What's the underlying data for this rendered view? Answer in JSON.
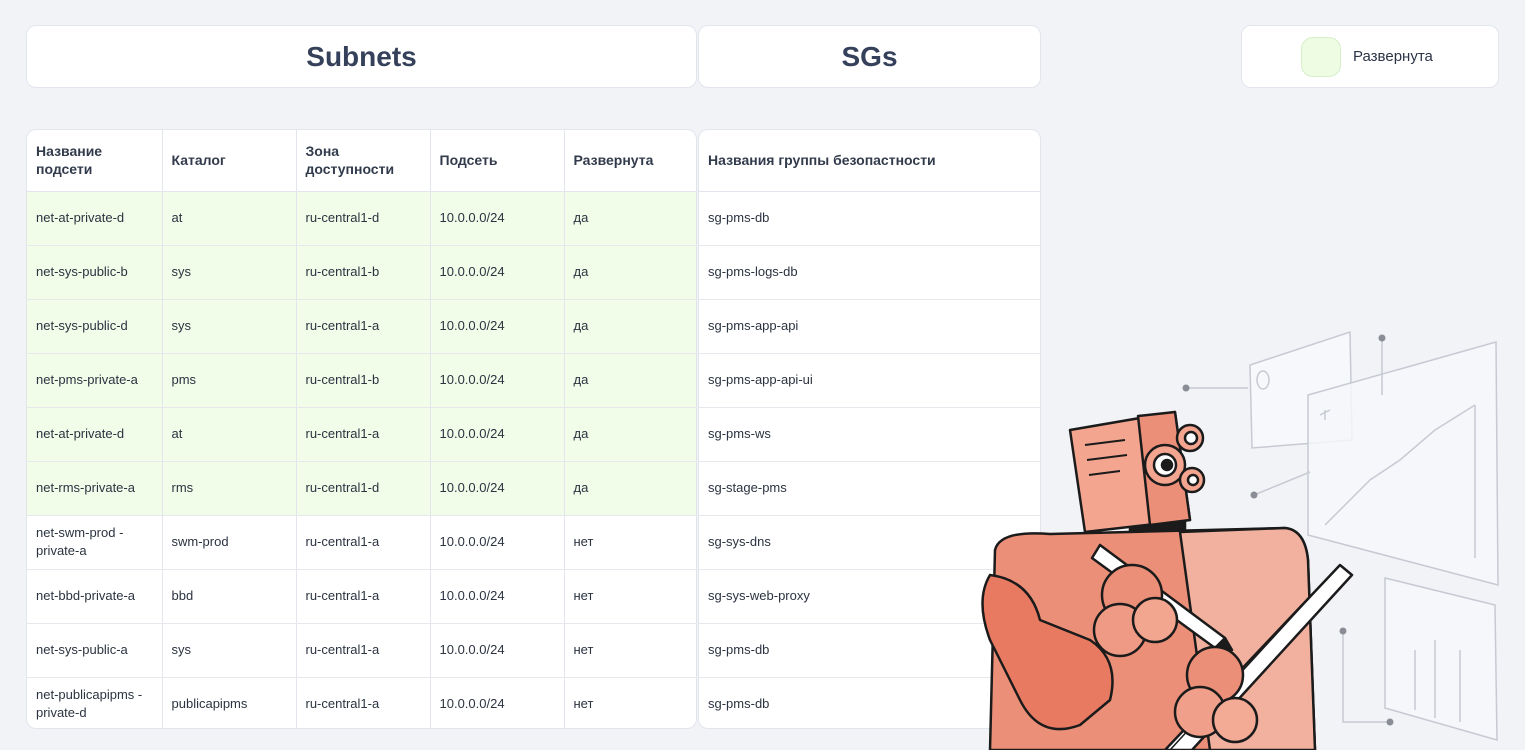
{
  "header": {
    "subnets_title": "Subnets",
    "sgs_title": "SGs"
  },
  "legend": {
    "label": "Развернута",
    "color": "#eefce4"
  },
  "subnets": {
    "columns": [
      "Названиe подсети",
      "Каталог",
      "Зона доступности",
      "Подсеть",
      "Развернута"
    ],
    "rows": [
      [
        "net-at-private-d",
        "at",
        "ru-central1-d",
        "10.0.0.0/24",
        "да"
      ],
      [
        "net-sys-public-b",
        "sys",
        "ru-central1-b",
        "10.0.0.0/24",
        "да"
      ],
      [
        "net-sys-public-d",
        "sys",
        "ru-central1-a",
        "10.0.0.0/24",
        "да"
      ],
      [
        "net-pms-private-a",
        "pms",
        "ru-central1-b",
        "10.0.0.0/24",
        "да"
      ],
      [
        "net-at-private-d",
        "at",
        "ru-central1-a",
        "10.0.0.0/24",
        "да"
      ],
      [
        "net-rms-private-a",
        "rms",
        "ru-central1-d",
        "10.0.0.0/24",
        "да"
      ],
      [
        "net-swm-prod -private-a",
        "swm-prod",
        "ru-central1-a",
        "10.0.0.0/24",
        "нет"
      ],
      [
        "net-bbd-private-a",
        "bbd",
        "ru-central1-a",
        "10.0.0.0/24",
        "нет"
      ],
      [
        "net-sys-public-a",
        "sys",
        "ru-central1-a",
        "10.0.0.0/24",
        "нет"
      ],
      [
        "net-publicapipms -private-d",
        "publicapipms",
        "ru-central1-a",
        "10.0.0.0/24",
        "нет"
      ]
    ]
  },
  "sgs": {
    "column": "Названия группы безопастности",
    "rows": [
      "sg-pms-db",
      "sg-pms-logs-db",
      "sg-pms-app-api",
      "sg-pms-app-api-ui",
      "sg-pms-ws",
      "sg-stage-pms",
      "sg-sys-dns",
      "sg-sys-web-proxy",
      "sg-pms-db",
      "sg-pms-db"
    ]
  },
  "illustration": {
    "icon": "robot-with-tablet-illustration",
    "robot_color": "#ec8f78"
  }
}
